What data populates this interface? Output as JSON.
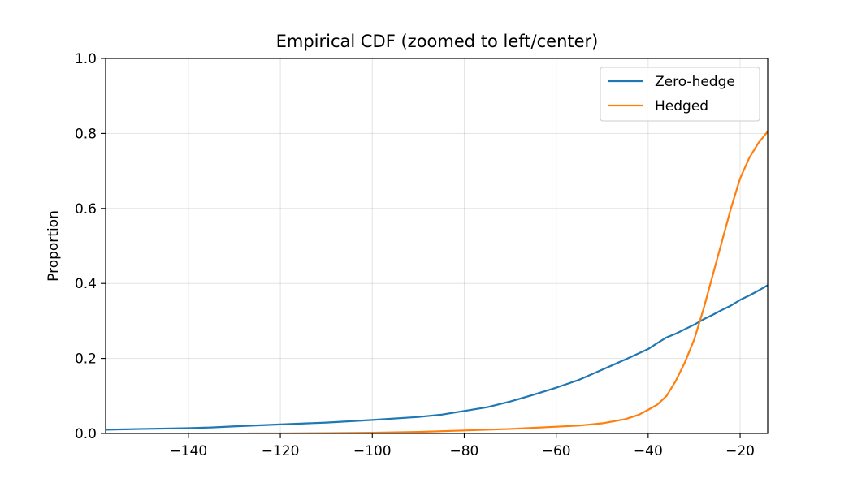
{
  "chart_data": {
    "type": "line",
    "title": "Empirical CDF (zoomed to left/center)",
    "xlabel": "",
    "ylabel": "Proportion",
    "xlim": [
      -158,
      -14
    ],
    "ylim": [
      0.0,
      1.0
    ],
    "x_ticks": [
      -140,
      -120,
      -100,
      -80,
      -60,
      -40,
      -20
    ],
    "x_tick_labels": [
      "−140",
      "−120",
      "−100",
      "−80",
      "−60",
      "−40",
      "−20"
    ],
    "y_ticks": [
      0.0,
      0.2,
      0.4,
      0.6,
      0.8,
      1.0
    ],
    "y_tick_labels": [
      "0.0",
      "0.2",
      "0.4",
      "0.6",
      "0.8",
      "1.0"
    ],
    "grid": true,
    "legend_position": "top-right",
    "series": [
      {
        "name": "Zero-hedge",
        "color": "#1f77b4",
        "x": [
          -158,
          -150,
          -140,
          -135,
          -130,
          -120,
          -110,
          -100,
          -90,
          -85,
          -80,
          -75,
          -70,
          -65,
          -60,
          -55,
          -50,
          -45,
          -40,
          -38,
          -36,
          -34,
          -32,
          -30,
          -28,
          -26,
          -24,
          -22,
          -20,
          -18,
          -16,
          -14
        ],
        "y": [
          0.01,
          0.012,
          0.014,
          0.016,
          0.019,
          0.024,
          0.029,
          0.036,
          0.044,
          0.05,
          0.06,
          0.07,
          0.085,
          0.103,
          0.122,
          0.143,
          0.17,
          0.197,
          0.225,
          0.241,
          0.256,
          0.266,
          0.278,
          0.29,
          0.304,
          0.316,
          0.329,
          0.341,
          0.356,
          0.368,
          0.381,
          0.395
        ]
      },
      {
        "name": "Hedged",
        "color": "#ff7f0e",
        "x": [
          -127,
          -120,
          -110,
          -100,
          -90,
          -80,
          -70,
          -60,
          -55,
          -50,
          -45,
          -42,
          -40,
          -38,
          -36,
          -34,
          -32,
          -30,
          -28,
          -26,
          -24,
          -22,
          -20,
          -18,
          -16,
          -14
        ],
        "y": [
          0.0,
          0.0,
          0.001,
          0.002,
          0.004,
          0.008,
          0.012,
          0.018,
          0.021,
          0.027,
          0.038,
          0.05,
          0.063,
          0.077,
          0.1,
          0.14,
          0.19,
          0.25,
          0.33,
          0.42,
          0.51,
          0.6,
          0.68,
          0.735,
          0.775,
          0.805
        ]
      }
    ]
  }
}
